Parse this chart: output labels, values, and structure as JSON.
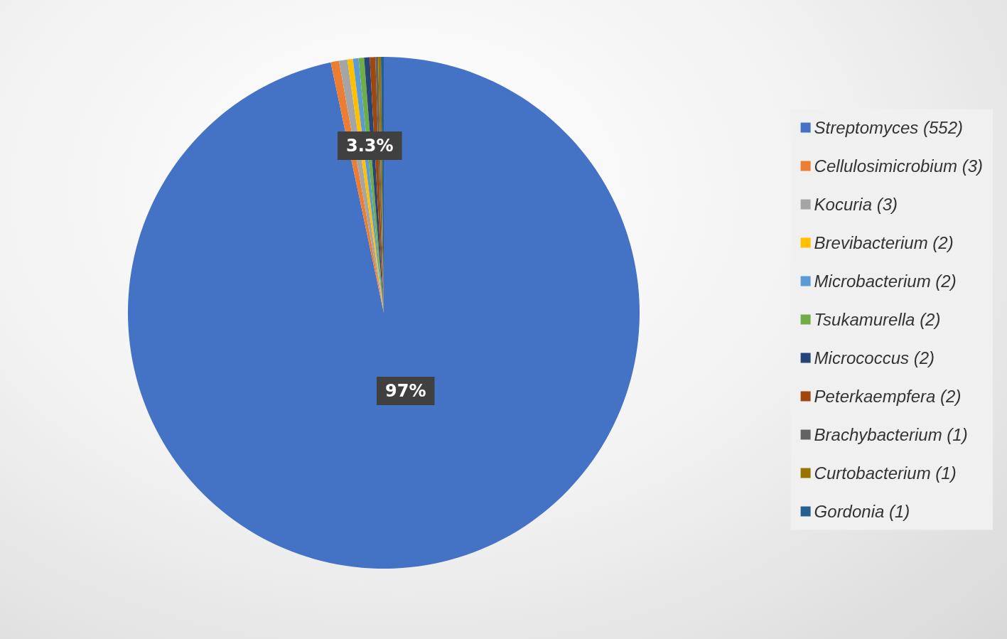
{
  "chart_data": {
    "type": "pie",
    "categories": [
      "Streptomyces (552)",
      "Cellulosimicrobium (3)",
      "Kocuria (3)",
      "Brevibacterium (2)",
      "Microbacterium (2)",
      "Tsukamurella (2)",
      "Micrococcus (2)",
      "Peterkaempfera (2)",
      "Brachybacterium (1)",
      "Curtobacterium (1)",
      "Gordonia (1)"
    ],
    "values": [
      552,
      3,
      3,
      2,
      2,
      2,
      2,
      2,
      1,
      1,
      1
    ],
    "colors": [
      "#4472c4",
      "#ed7d31",
      "#a5a5a5",
      "#ffc000",
      "#5b9bd5",
      "#70ad47",
      "#264478",
      "#9e480e",
      "#636363",
      "#997300",
      "#255e91"
    ],
    "annotations": [
      "3.3%",
      "97%"
    ],
    "legend": "right"
  }
}
